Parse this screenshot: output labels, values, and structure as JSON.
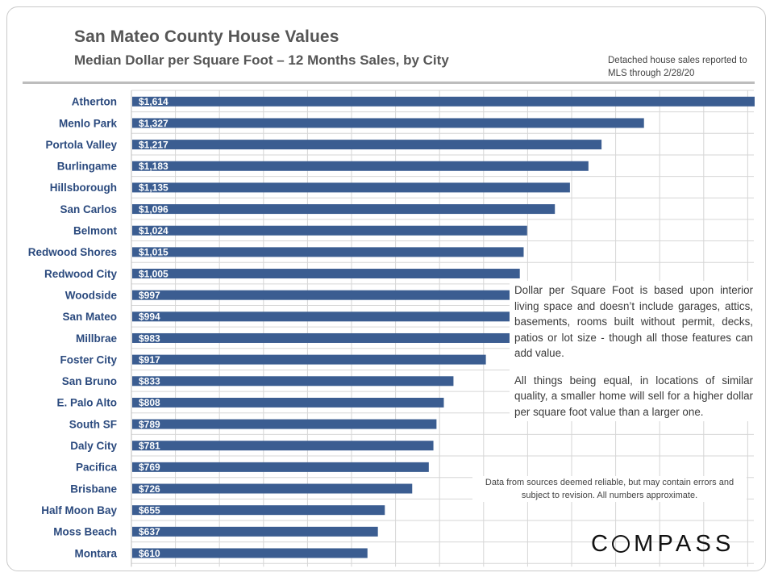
{
  "header": {
    "title": "San Mateo County House Values",
    "subtitle": "Median Dollar per Square Foot – 12 Months Sales, by City",
    "note": "Detached house sales reported to MLS through 2/28/20"
  },
  "annotation": {
    "p1": "Dollar per Square Foot is based upon interior living space and doesn’t include garages, attics, basements, rooms built without permit, decks, patios or lot size - though all those features can add value.",
    "p2": "All things being equal, in locations of similar quality, a smaller home will sell for a higher dollar per square foot value than a larger one."
  },
  "disclaimer": "Data from sources deemed reliable, but may contain errors and subject to revision. All numbers approximate.",
  "logo": {
    "text": "COMPASS",
    "o_glyph": "O",
    "rest": "MPASS",
    "lead": "C"
  },
  "colors": {
    "bar": "#3b5d91",
    "bar_label": "#ffffff",
    "category": "#2b4a7e",
    "grid": "#d6d6d6",
    "text": "#565656"
  },
  "chart_data": {
    "type": "bar",
    "orientation": "horizontal",
    "title": "San Mateo County House Values",
    "subtitle": "Median Dollar per Square Foot – 12 Months Sales, by City",
    "categories": [
      "Atherton",
      "Menlo Park",
      "Portola Valley",
      "Burlingame",
      "Hillsborough",
      "San Carlos",
      "Belmont",
      "Redwood Shores",
      "Redwood City",
      "Woodside",
      "San Mateo",
      "Millbrae",
      "Foster City",
      "San Bruno",
      "E. Palo Alto",
      "South SF",
      "Daly City",
      "Pacifica",
      "Brisbane",
      "Half Moon Bay",
      "Moss Beach",
      "Montara"
    ],
    "values": [
      1614,
      1327,
      1217,
      1183,
      1135,
      1096,
      1024,
      1015,
      1005,
      997,
      994,
      983,
      917,
      833,
      808,
      789,
      781,
      769,
      726,
      655,
      637,
      610
    ],
    "labels": [
      "$1,614",
      "$1,327",
      "$1,217",
      "$1,183",
      "$1,135",
      "$1,096",
      "$1,024",
      "$1,015",
      "$1,005",
      "$997",
      "$994",
      "$983",
      "$917",
      "$833",
      "$808",
      "$789",
      "$781",
      "$769",
      "$726",
      "$655",
      "$637",
      "$610"
    ],
    "xlim": [
      0,
      1614
    ],
    "grid": true,
    "axis_ticks_shown": false
  }
}
